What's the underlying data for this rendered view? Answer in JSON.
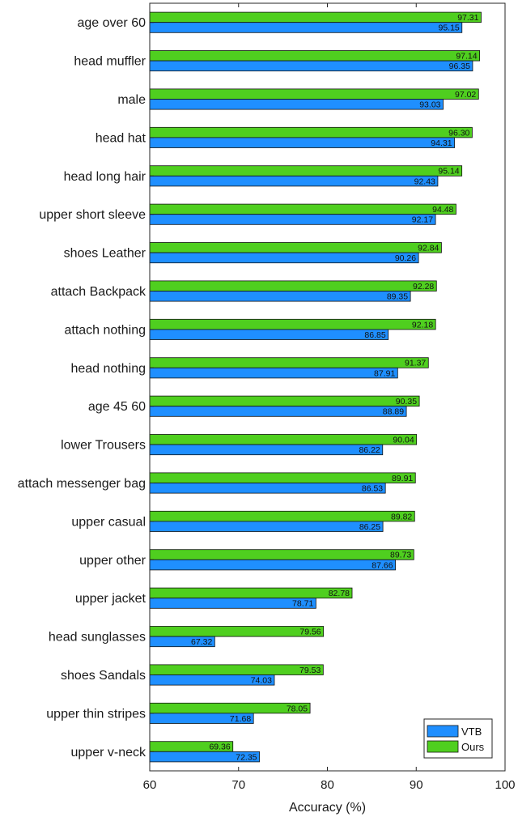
{
  "chart_data": {
    "type": "bar",
    "orientation": "horizontal",
    "title": "",
    "xlabel": "Accuracy (%)",
    "ylabel": "",
    "xlim": [
      60,
      100
    ],
    "xticks": [
      60,
      70,
      80,
      90,
      100
    ],
    "grid": false,
    "legend_position": "bottom-right",
    "categories": [
      "age over 60",
      "head muffler",
      "male",
      "head hat",
      "head long hair",
      "upper short sleeve",
      "shoes Leather",
      "attach Backpack",
      "attach nothing",
      "head nothing",
      "age 45 60",
      "lower Trousers",
      "attach messenger bag",
      "upper casual",
      "upper other",
      "upper jacket",
      "head sunglasses",
      "shoes Sandals",
      "upper thin stripes",
      "upper v-neck"
    ],
    "series": [
      {
        "name": "VTB",
        "color": "#1f8fff",
        "values": [
          95.15,
          96.35,
          93.03,
          94.31,
          92.43,
          92.17,
          90.26,
          89.35,
          86.85,
          87.91,
          88.89,
          86.22,
          86.53,
          86.25,
          87.66,
          78.71,
          67.32,
          74.03,
          71.68,
          72.35
        ],
        "labels": [
          "95.15",
          "96.35",
          "93.03",
          "94.31",
          "92.43",
          "92.17",
          "90.26",
          "89.35",
          "86.85",
          "87.91",
          "88.89",
          "86.22",
          "86.53",
          "86.25",
          "87.66",
          "78.71",
          "67.32",
          "74.03",
          "71.68",
          "72.35"
        ]
      },
      {
        "name": "Ours",
        "color": "#4fcf1f",
        "values": [
          97.31,
          97.14,
          97.02,
          96.3,
          95.14,
          94.48,
          92.84,
          92.28,
          92.18,
          91.37,
          90.35,
          90.04,
          89.91,
          89.82,
          89.73,
          82.78,
          79.56,
          79.53,
          78.05,
          69.36
        ],
        "labels": [
          "97.31",
          "97.14",
          "97.02",
          "96.30",
          "95.14",
          "94.48",
          "92.84",
          "92.28",
          "92.18",
          "91.37",
          "90.35",
          "90.04",
          "89.91",
          "89.82",
          "89.73",
          "82.78",
          "79.56",
          "79.53",
          "78.05",
          "69.36"
        ]
      }
    ]
  }
}
